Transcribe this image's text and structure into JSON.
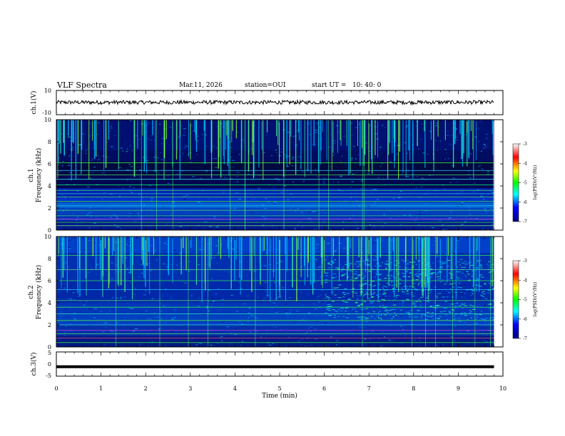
{
  "header": {
    "title": "VLF Spectra",
    "date": "Mar.11, 2026",
    "station": "station=OUI",
    "start": "start UT =   10: 40: 0"
  },
  "colorbar": {
    "label": "log(PSD)(V²/Hz)",
    "ticks": [
      "-3",
      "-4",
      "-5",
      "-6",
      "-7"
    ],
    "colors": [
      "#ffffff",
      "#ff0000",
      "#ffff00",
      "#00ff00",
      "#00ffff",
      "#0000ff",
      "#000080"
    ]
  },
  "chart_data": [
    {
      "type": "line",
      "title": "VLF Spectra",
      "ylabel": "ch.1(V)",
      "ylim": [
        -10,
        10
      ],
      "yticks": [
        "10",
        "-10"
      ],
      "x": [
        0,
        9.8
      ],
      "y": [
        0,
        0
      ],
      "note": "noisy signal around 0 V"
    },
    {
      "type": "heatmap",
      "ylabel": "ch.1\nFrequency (kHz)",
      "ylim": [
        0,
        10
      ],
      "yticks": [
        "10",
        "8",
        "6",
        "4",
        "2",
        "0"
      ],
      "xlim": [
        0,
        9.8
      ]
    },
    {
      "type": "heatmap",
      "ylabel": "ch.2\nFrequency (kHz)",
      "ylim": [
        0,
        10
      ],
      "yticks": [
        "10",
        "8",
        "6",
        "4",
        "2",
        "0"
      ],
      "xlim": [
        0,
        9.8
      ]
    },
    {
      "type": "line",
      "ylabel": "ch.3(V)",
      "ylim": [
        -5,
        5
      ],
      "yticks": [
        "5",
        "0",
        "-5"
      ],
      "x": [
        0,
        9.8
      ],
      "y": [
        -1.1,
        -1.1
      ],
      "xlabel": "Time (min)",
      "xlim": [
        0,
        10
      ],
      "xticks": [
        "0",
        "1",
        "2",
        "3",
        "4",
        "5",
        "6",
        "7",
        "8",
        "9",
        "10"
      ]
    }
  ]
}
